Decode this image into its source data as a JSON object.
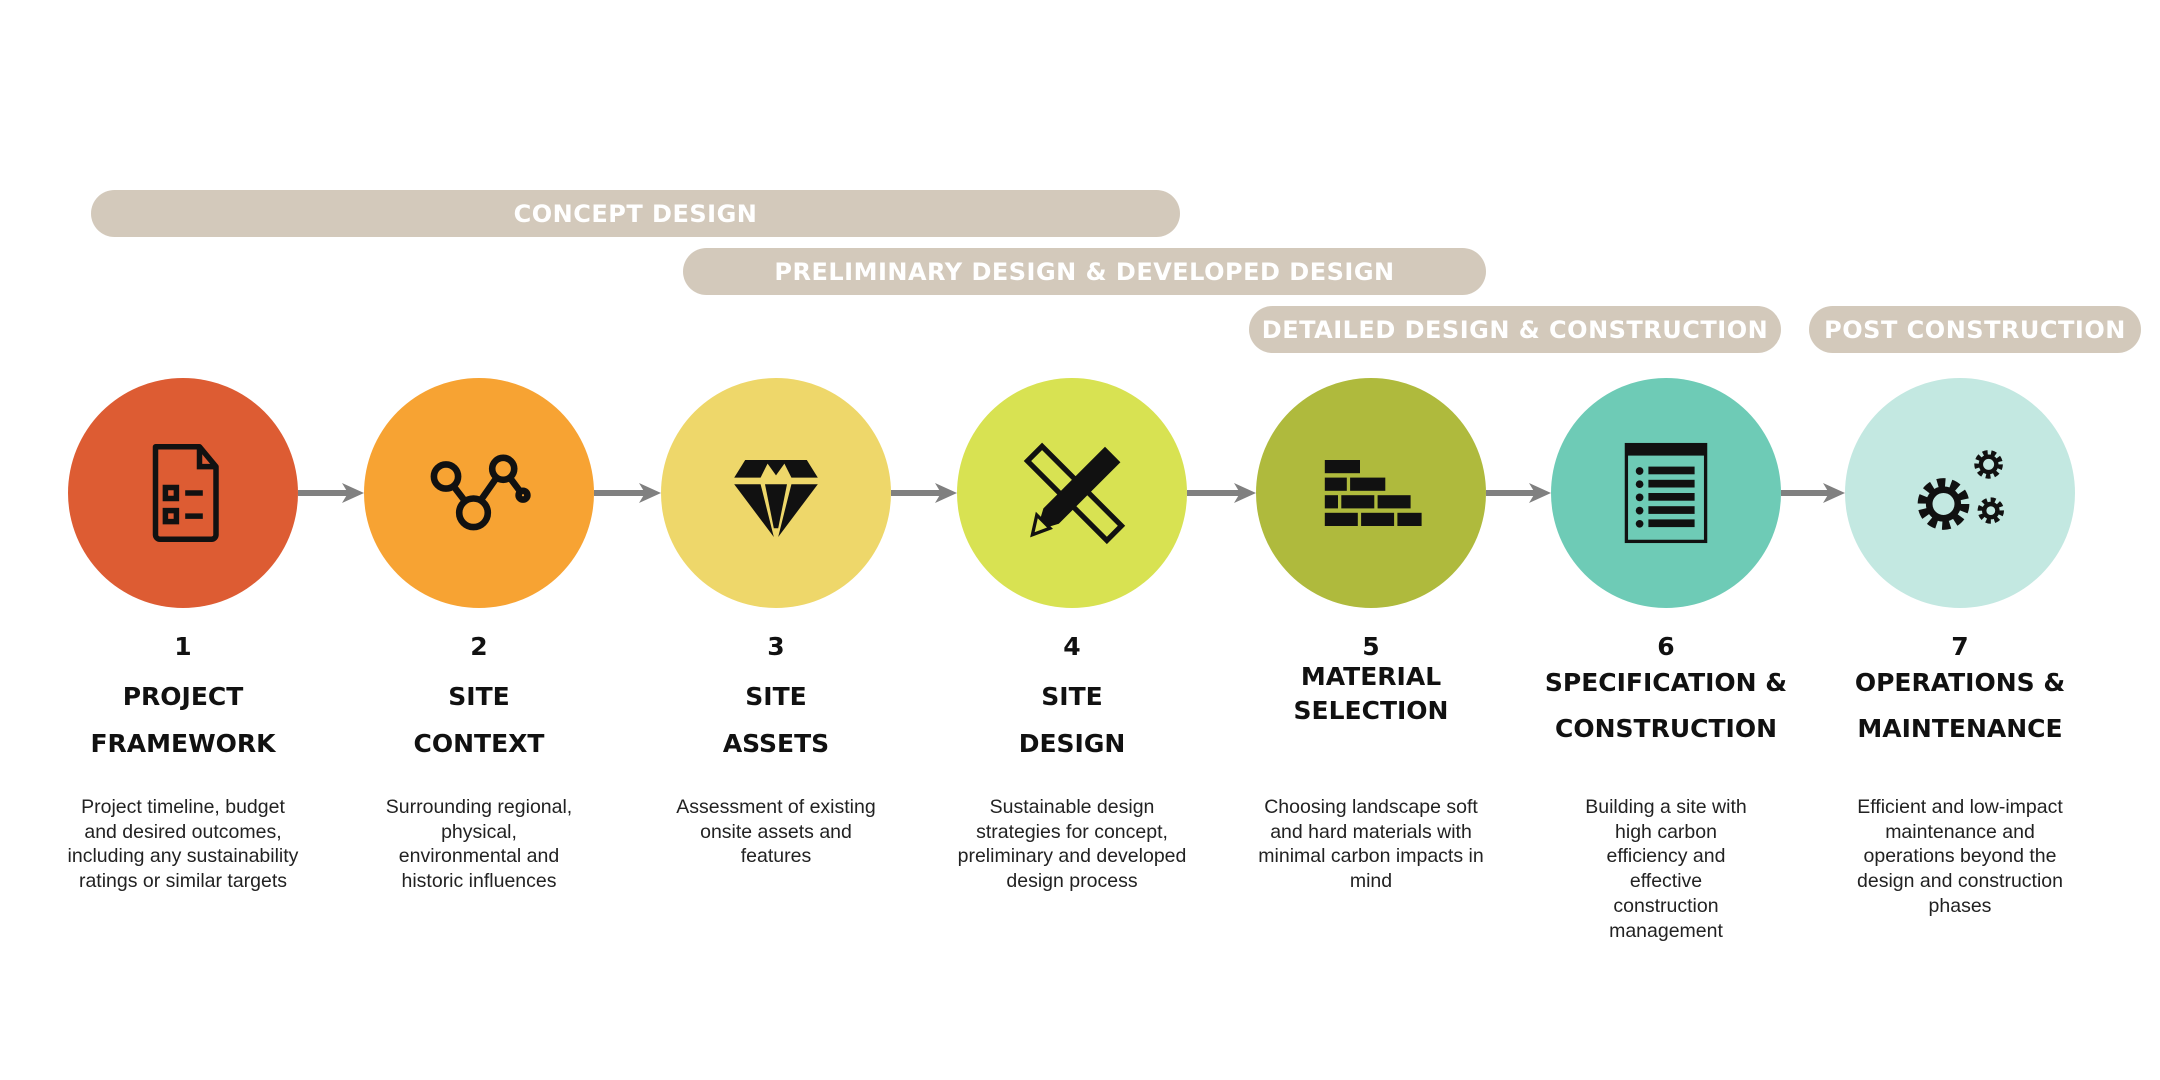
{
  "phases": [
    {
      "label": "CONCEPT DESIGN"
    },
    {
      "label": "PRELIMINARY DESIGN & DEVELOPED DESIGN"
    },
    {
      "label": "DETAILED DESIGN & CONSTRUCTION"
    },
    {
      "label": "POST CONSTRUCTION"
    }
  ],
  "steps": [
    {
      "number": "1",
      "title1": "PROJECT",
      "title2": "FRAMEWORK",
      "desc": "Project timeline, budget and desired outcomes, including any sustainability ratings or similar targets",
      "color": "#dd5c33",
      "icon": "document-checklist-icon"
    },
    {
      "number": "2",
      "title1": "SITE",
      "title2": "CONTEXT",
      "desc": "Surrounding regional, physical, environmental and historic influences",
      "color": "#f7a333",
      "icon": "connected-nodes-icon"
    },
    {
      "number": "3",
      "title1": "SITE",
      "title2": "ASSETS",
      "desc": "Assessment of existing onsite assets and features",
      "color": "#eed76a",
      "icon": "diamond-icon"
    },
    {
      "number": "4",
      "title1": "SITE",
      "title2": "DESIGN",
      "desc": "Sustainable design strategies for concept, preliminary and developed design process",
      "color": "#d8e252",
      "icon": "pencil-ruler-icon"
    },
    {
      "number": "5",
      "title1": "MATERIAL",
      "title2": "SELECTION",
      "desc": "Choosing landscape soft and hard materials with minimal carbon impacts in mind",
      "color": "#afba3d",
      "icon": "brick-wall-icon"
    },
    {
      "number": "6",
      "title1": "SPECIFICATION &",
      "title2": "CONSTRUCTION",
      "desc": "Building a site with high carbon efficiency and effective construction management",
      "color": "#6ecbb6",
      "icon": "specification-list-icon"
    },
    {
      "number": "7",
      "title1": "OPERATIONS &",
      "title2": "MAINTENANCE",
      "desc": "Efficient and low-impact maintenance and operations beyond the design and construction phases",
      "color": "#c3e8e1",
      "icon": "gears-icon"
    }
  ],
  "colors": {
    "phase_bar": "#d3c9bb",
    "arrow": "#808080"
  }
}
